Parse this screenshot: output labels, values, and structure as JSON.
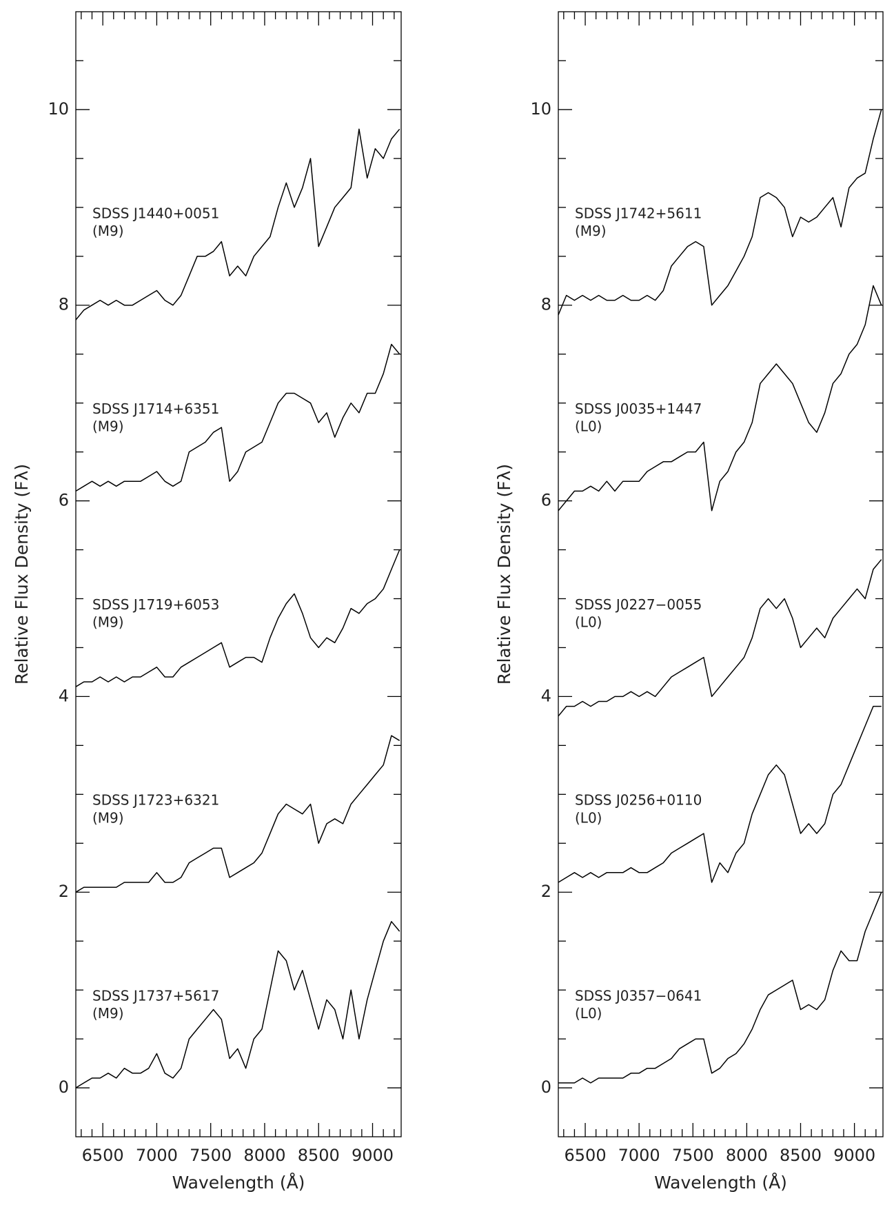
{
  "chart_data": [
    {
      "type": "line",
      "xlabel": "Wavelength (Å)",
      "ylabel": "Relative Flux Density (Fλ)",
      "xlim": [
        6250,
        9265
      ],
      "ylim": [
        -0.5,
        11
      ],
      "xticks": [
        6500,
        7000,
        7500,
        8000,
        8500,
        9000
      ],
      "xticks_minor": [
        6300,
        6400,
        6600,
        6700,
        6800,
        6900,
        7100,
        7200,
        7300,
        7400,
        7600,
        7700,
        7800,
        7900,
        8100,
        8200,
        8300,
        8400,
        8600,
        8700,
        8800,
        8900,
        9100,
        9200
      ],
      "yticks": [
        0,
        2,
        4,
        6,
        8,
        10
      ],
      "yticks_minor": [
        0.5,
        1,
        1.5,
        2.5,
        3,
        3.5,
        4.5,
        5,
        5.5,
        6.5,
        7,
        7.5,
        8.5,
        9,
        9.5,
        10.5
      ],
      "x": [
        6250,
        6325,
        6400,
        6475,
        6550,
        6625,
        6700,
        6775,
        6850,
        6925,
        7000,
        7075,
        7150,
        7225,
        7300,
        7375,
        7450,
        7525,
        7600,
        7675,
        7750,
        7825,
        7900,
        7975,
        8050,
        8125,
        8200,
        8275,
        8350,
        8425,
        8500,
        8575,
        8650,
        8725,
        8800,
        8875,
        8950,
        9025,
        9100,
        9175,
        9250
      ],
      "series": [
        {
          "name": "SDSS J1440+0051",
          "spectral_type": "(M9)",
          "color": "#000000",
          "values": [
            7.85,
            7.95,
            8.0,
            8.05,
            8.0,
            8.05,
            8.0,
            8.0,
            8.05,
            8.1,
            8.15,
            8.05,
            8.0,
            8.1,
            8.3,
            8.5,
            8.5,
            8.55,
            8.65,
            8.3,
            8.4,
            8.3,
            8.5,
            8.6,
            8.7,
            9.0,
            9.25,
            9.0,
            9.2,
            9.5,
            8.6,
            8.8,
            9.0,
            9.1,
            9.2,
            9.8,
            9.3,
            9.6,
            9.5,
            9.7,
            9.8
          ]
        },
        {
          "name": "SDSS J1714+6351",
          "spectral_type": "(M9)",
          "color": "#000000",
          "values": [
            6.1,
            6.15,
            6.2,
            6.15,
            6.2,
            6.15,
            6.2,
            6.2,
            6.2,
            6.25,
            6.3,
            6.2,
            6.15,
            6.2,
            6.5,
            6.55,
            6.6,
            6.7,
            6.75,
            6.2,
            6.3,
            6.5,
            6.55,
            6.6,
            6.8,
            7.0,
            7.1,
            7.1,
            7.05,
            7.0,
            6.8,
            6.9,
            6.65,
            6.85,
            7.0,
            6.9,
            7.1,
            7.1,
            7.3,
            7.6,
            7.5
          ]
        },
        {
          "name": "SDSS J1719+6053",
          "spectral_type": "(M9)",
          "color": "#000000",
          "values": [
            4.1,
            4.15,
            4.15,
            4.2,
            4.15,
            4.2,
            4.15,
            4.2,
            4.2,
            4.25,
            4.3,
            4.2,
            4.2,
            4.3,
            4.35,
            4.4,
            4.45,
            4.5,
            4.55,
            4.3,
            4.35,
            4.4,
            4.4,
            4.35,
            4.6,
            4.8,
            4.95,
            5.05,
            4.85,
            4.6,
            4.5,
            4.6,
            4.55,
            4.7,
            4.9,
            4.85,
            4.95,
            5.0,
            5.1,
            5.3,
            5.5
          ]
        },
        {
          "name": "SDSS J1723+6321",
          "spectral_type": "(M9)",
          "color": "#000000",
          "values": [
            2.0,
            2.05,
            2.05,
            2.05,
            2.05,
            2.05,
            2.1,
            2.1,
            2.1,
            2.1,
            2.2,
            2.1,
            2.1,
            2.15,
            2.3,
            2.35,
            2.4,
            2.45,
            2.45,
            2.15,
            2.2,
            2.25,
            2.3,
            2.4,
            2.6,
            2.8,
            2.9,
            2.85,
            2.8,
            2.9,
            2.5,
            2.7,
            2.75,
            2.7,
            2.9,
            3.0,
            3.1,
            3.2,
            3.3,
            3.6,
            3.55
          ]
        },
        {
          "name": "SDSS J1737+5617",
          "spectral_type": "(M9)",
          "color": "#000000",
          "values": [
            0.0,
            0.05,
            0.1,
            0.1,
            0.15,
            0.1,
            0.2,
            0.15,
            0.15,
            0.2,
            0.35,
            0.15,
            0.1,
            0.2,
            0.5,
            0.6,
            0.7,
            0.8,
            0.7,
            0.3,
            0.4,
            0.2,
            0.5,
            0.6,
            1.0,
            1.4,
            1.3,
            1.0,
            1.2,
            0.9,
            0.6,
            0.9,
            0.8,
            0.5,
            1.0,
            0.5,
            0.9,
            1.2,
            1.5,
            1.7,
            1.6
          ]
        }
      ]
    },
    {
      "type": "line",
      "xlabel": "Wavelength (Å)",
      "ylabel": "Relative Flux Density (Fλ)",
      "xlim": [
        6250,
        9265
      ],
      "ylim": [
        -0.5,
        11
      ],
      "xticks": [
        6500,
        7000,
        7500,
        8000,
        8500,
        9000
      ],
      "xticks_minor": [
        6300,
        6400,
        6600,
        6700,
        6800,
        6900,
        7100,
        7200,
        7300,
        7400,
        7600,
        7700,
        7800,
        7900,
        8100,
        8200,
        8300,
        8400,
        8600,
        8700,
        8800,
        8900,
        9100,
        9200
      ],
      "yticks": [
        0,
        2,
        4,
        6,
        8,
        10
      ],
      "yticks_minor": [
        0.5,
        1,
        1.5,
        2.5,
        3,
        3.5,
        4.5,
        5,
        5.5,
        6.5,
        7,
        7.5,
        8.5,
        9,
        9.5,
        10.5
      ],
      "x": [
        6250,
        6325,
        6400,
        6475,
        6550,
        6625,
        6700,
        6775,
        6850,
        6925,
        7000,
        7075,
        7150,
        7225,
        7300,
        7375,
        7450,
        7525,
        7600,
        7675,
        7750,
        7825,
        7900,
        7975,
        8050,
        8125,
        8200,
        8275,
        8350,
        8425,
        8500,
        8575,
        8650,
        8725,
        8800,
        8875,
        8950,
        9025,
        9100,
        9175,
        9250
      ],
      "series": [
        {
          "name": "SDSS J1742+5611",
          "spectral_type": "(M9)",
          "color": "#000000",
          "values": [
            7.9,
            8.1,
            8.05,
            8.1,
            8.05,
            8.1,
            8.05,
            8.05,
            8.1,
            8.05,
            8.05,
            8.1,
            8.05,
            8.15,
            8.4,
            8.5,
            8.6,
            8.65,
            8.6,
            8.0,
            8.1,
            8.2,
            8.35,
            8.5,
            8.7,
            9.1,
            9.15,
            9.1,
            9.0,
            8.7,
            8.9,
            8.85,
            8.9,
            9.0,
            9.1,
            8.8,
            9.2,
            9.3,
            9.35,
            9.7,
            10.0
          ]
        },
        {
          "name": "SDSS J0035+1447",
          "spectral_type": "(L0)",
          "color": "#000000",
          "values": [
            5.9,
            6.0,
            6.1,
            6.1,
            6.15,
            6.1,
            6.2,
            6.1,
            6.2,
            6.2,
            6.2,
            6.3,
            6.35,
            6.4,
            6.4,
            6.45,
            6.5,
            6.5,
            6.6,
            5.9,
            6.2,
            6.3,
            6.5,
            6.6,
            6.8,
            7.2,
            7.3,
            7.4,
            7.3,
            7.2,
            7.0,
            6.8,
            6.7,
            6.9,
            7.2,
            7.3,
            7.5,
            7.6,
            7.8,
            8.2,
            8.0
          ]
        },
        {
          "name": "SDSS J0227−0055",
          "spectral_type": "(L0)",
          "color": "#000000",
          "values": [
            3.8,
            3.9,
            3.9,
            3.95,
            3.9,
            3.95,
            3.95,
            4.0,
            4.0,
            4.05,
            4.0,
            4.05,
            4.0,
            4.1,
            4.2,
            4.25,
            4.3,
            4.35,
            4.4,
            4.0,
            4.1,
            4.2,
            4.3,
            4.4,
            4.6,
            4.9,
            5.0,
            4.9,
            5.0,
            4.8,
            4.5,
            4.6,
            4.7,
            4.6,
            4.8,
            4.9,
            5.0,
            5.1,
            5.0,
            5.3,
            5.4
          ]
        },
        {
          "name": "SDSS J0256+0110",
          "spectral_type": "(L0)",
          "color": "#000000",
          "values": [
            2.1,
            2.15,
            2.2,
            2.15,
            2.2,
            2.15,
            2.2,
            2.2,
            2.2,
            2.25,
            2.2,
            2.2,
            2.25,
            2.3,
            2.4,
            2.45,
            2.5,
            2.55,
            2.6,
            2.1,
            2.3,
            2.2,
            2.4,
            2.5,
            2.8,
            3.0,
            3.2,
            3.3,
            3.2,
            2.9,
            2.6,
            2.7,
            2.6,
            2.7,
            3.0,
            3.1,
            3.3,
            3.5,
            3.7,
            3.9,
            3.9
          ]
        },
        {
          "name": "SDSS J0357−0641",
          "spectral_type": "(L0)",
          "color": "#000000",
          "values": [
            0.05,
            0.05,
            0.05,
            0.1,
            0.05,
            0.1,
            0.1,
            0.1,
            0.1,
            0.15,
            0.15,
            0.2,
            0.2,
            0.25,
            0.3,
            0.4,
            0.45,
            0.5,
            0.5,
            0.15,
            0.2,
            0.3,
            0.35,
            0.45,
            0.6,
            0.8,
            0.95,
            1.0,
            1.05,
            1.1,
            0.8,
            0.85,
            0.8,
            0.9,
            1.2,
            1.4,
            1.3,
            1.3,
            1.6,
            1.8,
            2.0
          ]
        }
      ]
    }
  ]
}
